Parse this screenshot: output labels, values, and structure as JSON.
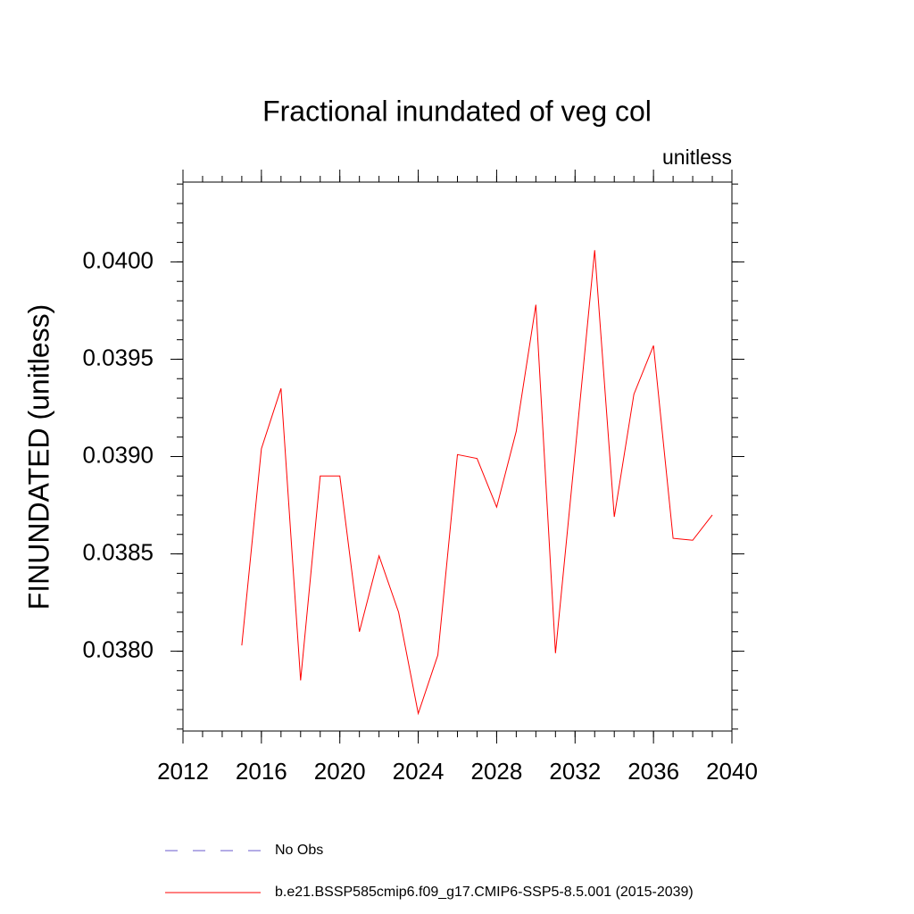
{
  "chart_data": {
    "type": "line",
    "title": "Fractional inundated of veg col",
    "subtitle": "unitless",
    "y_label": "FINUNDATED  (unitless)",
    "x": [
      2015,
      2016,
      2017,
      2018,
      2019,
      2020,
      2021,
      2022,
      2023,
      2024,
      2025,
      2026,
      2027,
      2028,
      2029,
      2030,
      2031,
      2032,
      2033,
      2034,
      2035,
      2036,
      2037,
      2038,
      2039
    ],
    "series": [
      {
        "name": "No Obs",
        "color": "#6a5acd",
        "dash": "dashed",
        "values": [
          null,
          null,
          null,
          null,
          null,
          null,
          null,
          null,
          null,
          null,
          null,
          null,
          null,
          null,
          null,
          null,
          null,
          null,
          null,
          null,
          null,
          null,
          null,
          null,
          null
        ]
      },
      {
        "name": "b.e21.BSSP585cmip6.f09_g17.CMIP6-SSP5-8.5.001 (2015-2039)",
        "color": "#ff0000",
        "dash": "solid",
        "values": [
          0.03803,
          0.03904,
          0.03935,
          0.03785,
          0.0389,
          0.0389,
          0.0381,
          0.03849,
          0.0382,
          0.03768,
          0.03798,
          0.03901,
          0.03899,
          0.03874,
          0.03913,
          0.03978,
          0.03799,
          0.03902,
          0.04006,
          0.03869,
          0.03932,
          0.03957,
          0.03858,
          0.03857,
          0.0387
        ]
      }
    ],
    "xlim": [
      2012,
      2040
    ],
    "xticks": [
      2012,
      2016,
      2020,
      2024,
      2028,
      2032,
      2036,
      2040
    ],
    "x_minor_step": 1,
    "ylim": [
      0.03759,
      0.04041
    ],
    "yticks": [
      {
        "value": 0.038,
        "label": "0.0380"
      },
      {
        "value": 0.0385,
        "label": "0.0385"
      },
      {
        "value": 0.039,
        "label": "0.0390"
      },
      {
        "value": 0.0395,
        "label": "0.0395"
      },
      {
        "value": 0.04,
        "label": "0.0400"
      }
    ],
    "y_minor_step": 0.0001,
    "grid": false
  }
}
